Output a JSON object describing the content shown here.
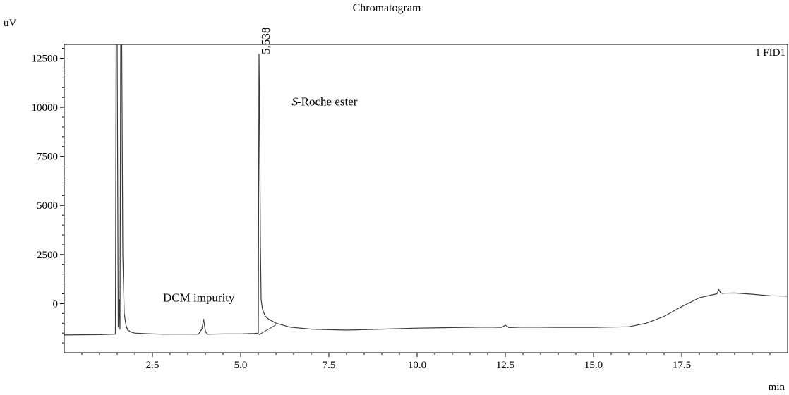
{
  "chart_data": {
    "type": "line",
    "title": "Chromatogram",
    "ylabel": "uV",
    "xlabel": "min",
    "ylim": [
      -2500,
      13200
    ],
    "xlim": [
      0,
      20.5
    ],
    "xticks": [
      2.5,
      5.0,
      7.5,
      10.0,
      12.5,
      15.0,
      17.5
    ],
    "yticks": [
      0,
      2500,
      5000,
      7500,
      10000,
      12500
    ],
    "legend": "1 FID1",
    "legend_position": "top-right",
    "grid": false,
    "line_color": "#3a3a3a",
    "series": [
      {
        "x": [
          0.0,
          1.0,
          1.45,
          1.47,
          1.5,
          1.53,
          1.56,
          1.58,
          1.6,
          1.63,
          1.66,
          1.7,
          1.75,
          1.8,
          1.9,
          2.0,
          2.3,
          2.8,
          3.3,
          3.8,
          3.9,
          3.95,
          4.0,
          4.05,
          4.1,
          4.2,
          4.6,
          5.0,
          5.4,
          5.5,
          5.52,
          5.54,
          5.56,
          5.58,
          5.62,
          5.7,
          5.8,
          6.0,
          6.4,
          7.0,
          8.0,
          9.0,
          10.0,
          11.0,
          12.0,
          12.4,
          12.5,
          12.6,
          13.0,
          14.0,
          15.0,
          16.0,
          16.5,
          17.0,
          17.5,
          18.0,
          18.5,
          18.55,
          18.6,
          18.65,
          18.7,
          19.0,
          19.5,
          20.0,
          20.5
        ],
        "y": [
          -1600,
          -1580,
          -1550,
          13200,
          13200,
          -1200,
          200,
          -1300,
          13200,
          13200,
          2500,
          -500,
          -1100,
          -1350,
          -1450,
          -1500,
          -1530,
          -1560,
          -1550,
          -1560,
          -1300,
          -800,
          -1400,
          -1550,
          -1560,
          -1550,
          -1540,
          -1540,
          -1520,
          -1500,
          12700,
          9000,
          3000,
          200,
          -300,
          -650,
          -800,
          -1000,
          -1200,
          -1300,
          -1350,
          -1300,
          -1250,
          -1220,
          -1200,
          -1210,
          -1100,
          -1220,
          -1200,
          -1210,
          -1210,
          -1180,
          -1000,
          -650,
          -150,
          300,
          500,
          720,
          550,
          520,
          530,
          540,
          480,
          400,
          380
        ]
      },
      {
        "name": "baseline",
        "x": [
          5.52,
          6.0
        ],
        "y": [
          -1580,
          -1080
        ]
      }
    ],
    "annotations": [
      {
        "text": "5.538",
        "x": 5.538,
        "y": 12700,
        "rotate": -90
      },
      {
        "text": "S",
        "x": 6.45,
        "y": 10100,
        "italic": true
      },
      {
        "text": "-Roche ester",
        "x": 6.6,
        "y": 10100
      },
      {
        "text": "DCM impurity",
        "x": 2.8,
        "y": 100
      }
    ]
  }
}
